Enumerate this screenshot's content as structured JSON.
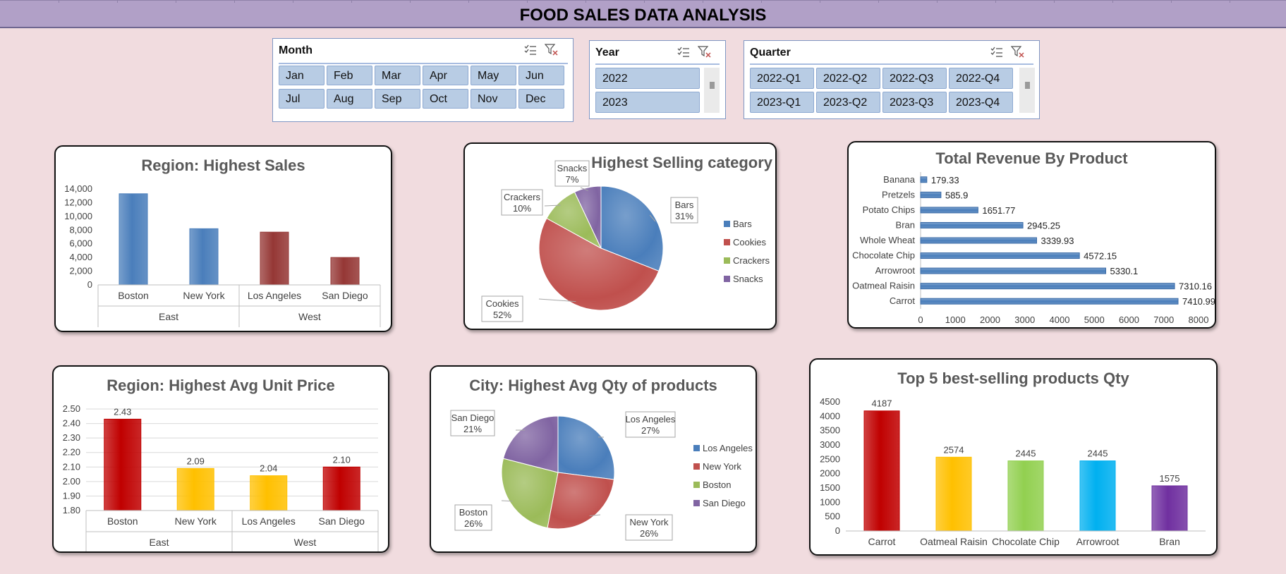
{
  "page_title": "FOOD SALES DATA ANALYSIS",
  "colors": {
    "blue": "#4a7ebb",
    "red": "#c0504d",
    "dark_red": "#953735",
    "green": "#9bbb59",
    "purple": "#8064a2",
    "bright_red": "#c00000",
    "yellow": "#ffc000",
    "lime": "#92d050",
    "cyan": "#00b0f0",
    "violet": "#7030a0"
  },
  "slicers": {
    "month": {
      "title": "Month",
      "items": [
        "Jan",
        "Feb",
        "Mar",
        "Apr",
        "May",
        "Jun",
        "Jul",
        "Aug",
        "Sep",
        "Oct",
        "Nov",
        "Dec"
      ]
    },
    "year": {
      "title": "Year",
      "items": [
        "2022",
        "2023"
      ]
    },
    "quarter": {
      "title": "Quarter",
      "items": [
        "2022-Q1",
        "2022-Q2",
        "2022-Q3",
        "2022-Q4",
        "2023-Q1",
        "2023-Q2",
        "2023-Q3",
        "2023-Q4"
      ]
    },
    "icons": [
      "multi-select-icon",
      "clear-filter-icon"
    ]
  },
  "chart_data": [
    {
      "id": "region_sales",
      "type": "bar",
      "title": "Region: Highest Sales",
      "categories": [
        "Boston",
        "New York",
        "Los Angeles",
        "San Diego"
      ],
      "groups": [
        {
          "name": "East",
          "span": 2
        },
        {
          "name": "West",
          "span": 2
        }
      ],
      "values": [
        13300,
        8200,
        7700,
        4000
      ],
      "bar_colors": [
        "#4a7ebb",
        "#4a7ebb",
        "#953735",
        "#953735"
      ],
      "yticks": [
        "0",
        "2,000",
        "4,000",
        "6,000",
        "8,000",
        "10,000",
        "12,000",
        "14,000"
      ],
      "ylim": [
        0,
        14000
      ],
      "grid": false
    },
    {
      "id": "category_pie",
      "type": "pie",
      "title": "Highest Selling category",
      "slices": [
        {
          "name": "Bars",
          "value": 31,
          "label": "Bars",
          "pct": "31%"
        },
        {
          "name": "Cookies",
          "value": 52,
          "label": "Cookies",
          "pct": "52%"
        },
        {
          "name": "Crackers",
          "value": 10,
          "label": "Crackers",
          "pct": "10%"
        },
        {
          "name": "Snacks",
          "value": 7,
          "label": "Snacks",
          "pct": "7%"
        }
      ],
      "legend": [
        "Bars",
        "Cookies",
        "Crackers",
        "Snacks"
      ],
      "legend_position": "right"
    },
    {
      "id": "product_revenue",
      "type": "bar",
      "orientation": "horizontal",
      "title": "Total Revenue By Product",
      "categories": [
        "Banana",
        "Pretzels",
        "Potato Chips",
        "Bran",
        "Whole Wheat",
        "Chocolate Chip",
        "Arrowroot",
        "Oatmeal Raisin",
        "Carrot"
      ],
      "values": [
        179.33,
        585.9,
        1651.77,
        2945.25,
        3339.93,
        4572.15,
        5330.1,
        7310.16,
        7410.99
      ],
      "data_labels": [
        "179.33",
        "585.9",
        "1651.77",
        "2945.25",
        "3339.93",
        "4572.15",
        "5330.1",
        "7310.16",
        "7410.99"
      ],
      "xticks": [
        "0",
        "1000",
        "2000",
        "3000",
        "4000",
        "5000",
        "6000",
        "7000",
        "8000"
      ],
      "xlim": [
        0,
        8000
      ],
      "grid": false
    },
    {
      "id": "region_avg_price",
      "type": "bar",
      "title": "Region: Highest Avg Unit Price",
      "categories": [
        "Boston",
        "New York",
        "Los Angeles",
        "San Diego"
      ],
      "groups": [
        {
          "name": "East",
          "span": 2
        },
        {
          "name": "West",
          "span": 2
        }
      ],
      "values": [
        2.43,
        2.09,
        2.04,
        2.1
      ],
      "data_labels": [
        "2.43",
        "2.09",
        "2.04",
        "2.10"
      ],
      "bar_colors": [
        "#c00000",
        "#ffc000",
        "#ffc000",
        "#c00000"
      ],
      "yticks": [
        "1.80",
        "1.90",
        "2.00",
        "2.10",
        "2.20",
        "2.30",
        "2.40",
        "2.50"
      ],
      "ylim": [
        1.8,
        2.5
      ],
      "grid": true
    },
    {
      "id": "city_avg_qty",
      "type": "pie",
      "title": "City: Highest Avg Qty of products",
      "slices": [
        {
          "name": "Los Angeles",
          "value": 27,
          "label": "Los Angeles",
          "pct": "27%"
        },
        {
          "name": "New York",
          "value": 26,
          "label": "New York",
          "pct": "26%"
        },
        {
          "name": "Boston",
          "value": 26,
          "label": "Boston",
          "pct": "26%"
        },
        {
          "name": "San Diego",
          "value": 21,
          "label": "San Diego",
          "pct": "21%"
        }
      ],
      "legend": [
        "Los Angeles",
        "New York",
        "Boston",
        "San Diego"
      ],
      "legend_position": "right"
    },
    {
      "id": "top5_qty",
      "type": "bar",
      "title": "Top 5 best-selling products Qty",
      "categories": [
        "Carrot",
        "Oatmeal Raisin",
        "Chocolate Chip",
        "Arrowroot",
        "Bran"
      ],
      "values": [
        4187,
        2574,
        2445,
        2445,
        1575
      ],
      "data_labels": [
        "4187",
        "2574",
        "2445",
        "2445",
        "1575"
      ],
      "bar_colors": [
        "#c00000",
        "#ffc000",
        "#92d050",
        "#00b0f0",
        "#7030a0"
      ],
      "yticks": [
        "0",
        "500",
        "1000",
        "1500",
        "2000",
        "2500",
        "3000",
        "3500",
        "4000",
        "4500"
      ],
      "ylim": [
        0,
        4500
      ],
      "grid": false
    }
  ]
}
